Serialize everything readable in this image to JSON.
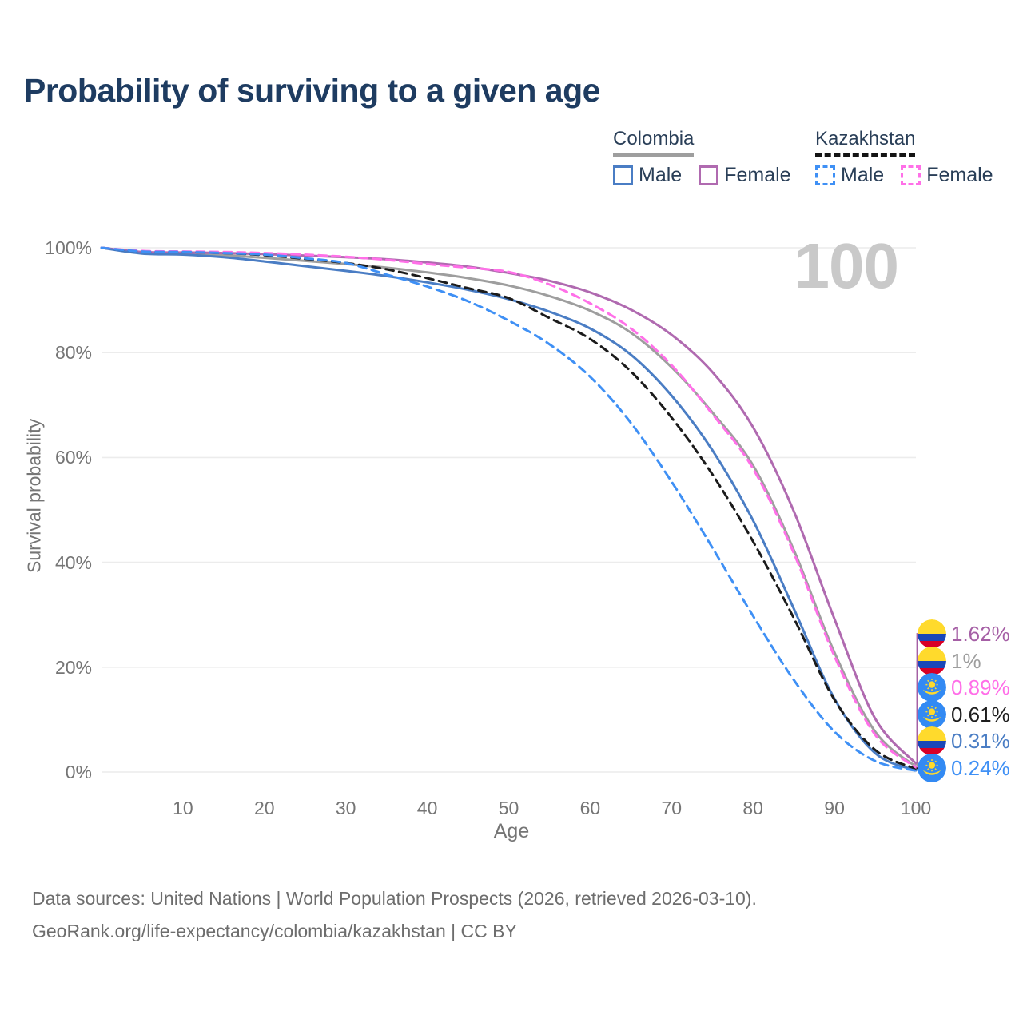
{
  "header": {
    "title": "Probability of surviving to a given age"
  },
  "legend": {
    "groups": [
      {
        "name": "Colombia",
        "underline": "solid",
        "items": [
          {
            "label": "Male",
            "color": "#4a7dc4",
            "dashed": false
          },
          {
            "label": "Female",
            "color": "#b06ab0",
            "dashed": false
          }
        ]
      },
      {
        "name": "Kazakhstan",
        "underline": "dashed",
        "items": [
          {
            "label": "Male",
            "color": "#3f90f5",
            "dashed": true
          },
          {
            "label": "Female",
            "color": "#ff70e8",
            "dashed": true
          }
        ]
      }
    ]
  },
  "chart_data": {
    "type": "line",
    "title": "Probability of surviving to a given age",
    "xlabel": "Age",
    "ylabel": "Survival probability",
    "xlim": [
      0,
      100
    ],
    "ylim": [
      0,
      100
    ],
    "grid": true,
    "x_ticks": [
      10,
      20,
      30,
      40,
      50,
      60,
      70,
      80,
      90,
      100
    ],
    "y_ticks_percent": [
      0,
      20,
      40,
      60,
      80,
      100
    ],
    "hover_age_watermark": "100",
    "ages": [
      0,
      5,
      10,
      15,
      20,
      25,
      30,
      35,
      40,
      45,
      50,
      55,
      60,
      65,
      70,
      75,
      80,
      85,
      90,
      95,
      100
    ],
    "series": [
      {
        "id": "colombia-all",
        "country": "Colombia",
        "sex": "All",
        "color": "#9e9e9e",
        "dash": false,
        "values": [
          100,
          99.1,
          99.0,
          98.6,
          98.1,
          97.5,
          96.9,
          96.2,
          95.3,
          94.2,
          92.8,
          90.8,
          88.0,
          83.8,
          77.2,
          68.6,
          58.5,
          42.4,
          22.8,
          7.7,
          1.0
        ]
      },
      {
        "id": "colombia-female",
        "country": "Colombia",
        "sex": "Female",
        "color": "#b06ab0",
        "dash": false,
        "values": [
          100,
          99.2,
          99.1,
          99.0,
          98.8,
          98.5,
          98.2,
          97.8,
          97.2,
          96.4,
          95.2,
          93.7,
          91.5,
          88.2,
          83.4,
          76.3,
          65.8,
          49.8,
          29.2,
          10.2,
          1.62
        ]
      },
      {
        "id": "colombia-male",
        "country": "Colombia",
        "sex": "Male",
        "color": "#4a7dc4",
        "dash": false,
        "values": [
          100,
          98.9,
          98.7,
          98.2,
          97.4,
          96.5,
          95.6,
          94.6,
          93.4,
          92.0,
          90.2,
          87.8,
          84.6,
          79.6,
          71.8,
          61.4,
          48.0,
          31.2,
          14.0,
          3.6,
          0.31
        ]
      },
      {
        "id": "kazakhstan-all",
        "country": "Kazakhstan",
        "sex": "All",
        "color": "#1b1b1b",
        "dash": true,
        "values": [
          100,
          99.3,
          99.2,
          99.0,
          98.6,
          97.9,
          97.1,
          95.9,
          94.2,
          92.3,
          90.4,
          86.6,
          82.6,
          76.4,
          67.6,
          56.8,
          44.0,
          29.4,
          13.8,
          4.2,
          0.61
        ]
      },
      {
        "id": "kazakhstan-female",
        "country": "Kazakhstan",
        "sex": "Female",
        "color": "#ff70e8",
        "dash": true,
        "values": [
          100,
          99.4,
          99.3,
          99.2,
          99.0,
          98.7,
          98.3,
          97.7,
          96.9,
          96.2,
          95.4,
          93.0,
          89.4,
          84.6,
          77.6,
          68.3,
          57.9,
          41.8,
          22.1,
          7.1,
          0.89
        ]
      },
      {
        "id": "kazakhstan-male",
        "country": "Kazakhstan",
        "sex": "Male",
        "color": "#3f90f5",
        "dash": true,
        "values": [
          100,
          99.3,
          99.2,
          99.0,
          98.7,
          98.0,
          97.1,
          94.9,
          92.6,
          89.8,
          86.1,
          81.6,
          75.4,
          66.6,
          55.4,
          42.8,
          29.8,
          17.6,
          7.7,
          2.1,
          0.24
        ]
      }
    ],
    "end_labels": [
      {
        "series": "colombia-female",
        "flag": "colombia",
        "label": "1.62%",
        "value": 1.62,
        "color": "#a55fa5"
      },
      {
        "series": "colombia-all",
        "flag": "colombia",
        "label": "1%",
        "value": 1.0,
        "color": "#9e9e9e"
      },
      {
        "series": "kazakhstan-female",
        "flag": "kazakhstan",
        "label": "0.89%",
        "value": 0.89,
        "color": "#ff6ee8"
      },
      {
        "series": "kazakhstan-all",
        "flag": "kazakhstan",
        "label": "0.61%",
        "value": 0.61,
        "color": "#1d1d1d"
      },
      {
        "series": "colombia-male",
        "flag": "colombia",
        "label": "0.31%",
        "value": 0.31,
        "color": "#4a7dc4"
      },
      {
        "series": "kazakhstan-male",
        "flag": "kazakhstan",
        "label": "0.24%",
        "value": 0.24,
        "color": "#3f90f5"
      }
    ]
  },
  "footer": {
    "line1": "Data sources: United Nations | World Population Prospects (2026, retrieved 2026-03-10).",
    "line2": "GeoRank.org/life-expectancy/colombia/kazakhstan | CC BY"
  },
  "colors": {
    "grid": "#ececec",
    "axis_text": "#757575",
    "title_text": "#1e3c61",
    "watermark": "#c9c9c9",
    "footer_text": "#6d6d6d",
    "legend_text": "#2a3f58"
  }
}
